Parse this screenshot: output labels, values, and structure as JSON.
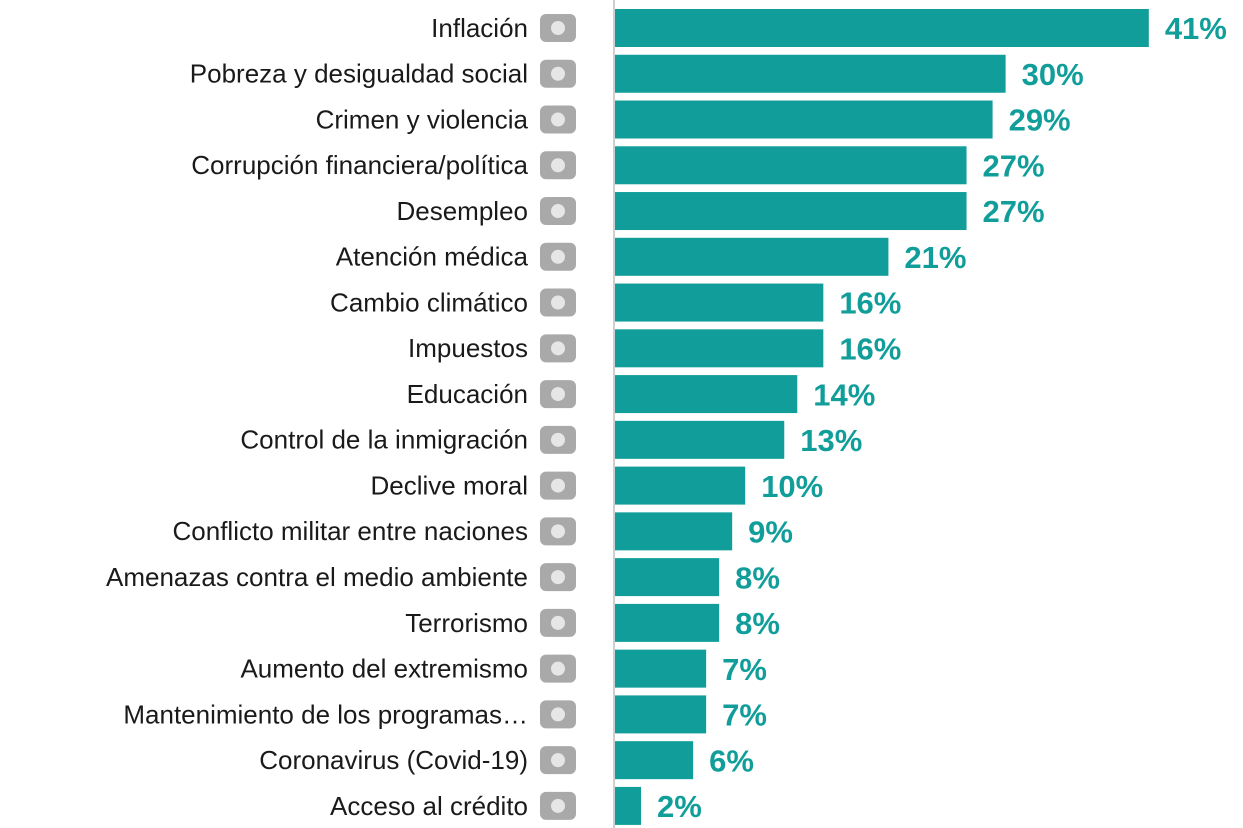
{
  "chart_data": {
    "type": "barh",
    "categories": [
      "Inflación",
      "Pobreza y desigualdad social",
      "Crimen y violencia",
      "Corrupción financiera/política",
      "Desempleo",
      "Atención médica",
      "Cambio climático",
      "Impuestos",
      "Educación",
      "Control de la inmigración",
      "Declive moral",
      "Conflicto militar entre naciones",
      "Amenazas contra el medio ambiente",
      "Terrorismo",
      "Aumento del extremismo",
      "Mantenimiento de los programas…",
      "Coronavirus (Covid-19)",
      "Acceso al crédito"
    ],
    "values": [
      41,
      30,
      29,
      27,
      27,
      21,
      16,
      16,
      14,
      13,
      10,
      9,
      8,
      8,
      7,
      7,
      6,
      2
    ],
    "value_labels": [
      "41%",
      "30%",
      "29%",
      "27%",
      "27%",
      "21%",
      "16%",
      "16%",
      "14%",
      "13%",
      "10%",
      "9%",
      "8%",
      "8%",
      "7%",
      "7%",
      "6%",
      "2%"
    ],
    "color": "#119e9a"
  }
}
